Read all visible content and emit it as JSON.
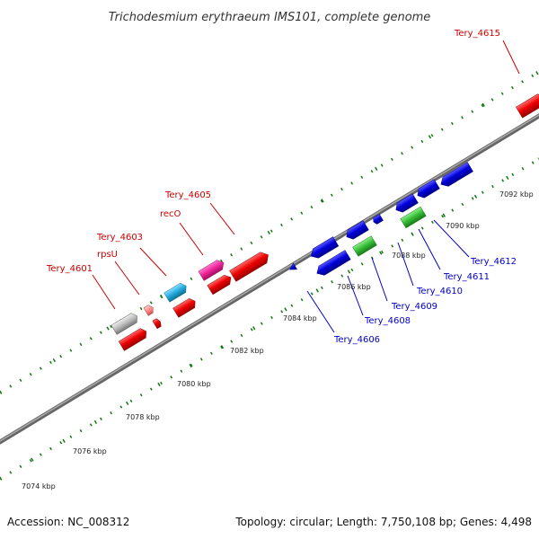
{
  "title": "Trichodesmium erythraeum IMS101, complete genome",
  "footer": {
    "accession": "Accession: NC_008312",
    "summary": "Topology: circular; Length: 7,750,108 bp; Genes: 4,498"
  },
  "colors": {
    "forward_red": "#ee0000",
    "reverse_blue": "#0000dd",
    "pink": "#ee2299",
    "cyan": "#22aadd",
    "green": "#33bb33",
    "grey": "#bbbbbb",
    "light_red": "#ff8888",
    "backbone": "#888888",
    "tick_green": "#117711",
    "leader_red": "#cc0000",
    "leader_blue": "#0000cc"
  },
  "kbp_ticks": [
    "7074 kbp",
    "7076 kbp",
    "7078 kbp",
    "7080 kbp",
    "7082 kbp",
    "7084 kbp",
    "7086 kbp",
    "7088 kbp",
    "7090 kbp",
    "7092 kbp"
  ],
  "gene_labels_top": [
    "Tery_4601",
    "rpsU",
    "Tery_4603",
    "recO",
    "Tery_4605",
    "Tery_4615"
  ],
  "gene_labels_bottom": [
    "Tery_4606",
    "Tery_4608",
    "Tery_4609",
    "Tery_4610",
    "Tery_4611",
    "Tery_4612"
  ]
}
